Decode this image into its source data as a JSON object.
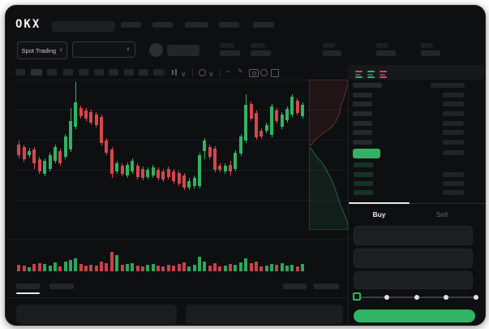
{
  "brand": "OKX",
  "header": {
    "market_selector_label": "Spot Trading"
  },
  "trade_panel": {
    "buy_tab_label": "Buy",
    "sell_tab_label": "Sell",
    "order_book": {
      "ask_rows": 7,
      "bid_rows": 4,
      "highlighted_row": "last-price-green"
    }
  },
  "colors": {
    "green": "#2eb464",
    "red": "#d8464e",
    "buy_button": "#2eb464",
    "tab_active_text": "#e8e9ea",
    "tab_inactive_text": "#63666b"
  },
  "chart_data": {
    "type": "candlestick",
    "title": "",
    "xlabel": "",
    "ylabel": "",
    "note": "skeleton trading UI; axes unlabeled, values in relative price units",
    "candles": [
      [
        105,
        110,
        88,
        92
      ],
      [
        102,
        105,
        84,
        87
      ],
      [
        92,
        101,
        89,
        97
      ],
      [
        99,
        102,
        75,
        82
      ],
      [
        87,
        90,
        69,
        72
      ],
      [
        69,
        88,
        66,
        85
      ],
      [
        75,
        95,
        72,
        92
      ],
      [
        85,
        105,
        82,
        102
      ],
      [
        97,
        100,
        79,
        82
      ],
      [
        90,
        118,
        87,
        115
      ],
      [
        99,
        150,
        96,
        134
      ],
      [
        127,
        182,
        124,
        157
      ],
      [
        150,
        153,
        137,
        140
      ],
      [
        147,
        150,
        134,
        137
      ],
      [
        145,
        148,
        129,
        132
      ],
      [
        142,
        145,
        126,
        129
      ],
      [
        139,
        142,
        104,
        107
      ],
      [
        110,
        113,
        92,
        95
      ],
      [
        99,
        102,
        64,
        69
      ],
      [
        72,
        85,
        69,
        82
      ],
      [
        79,
        82,
        66,
        69
      ],
      [
        67,
        83,
        64,
        80
      ],
      [
        72,
        88,
        69,
        85
      ],
      [
        79,
        82,
        62,
        65
      ],
      [
        75,
        78,
        61,
        64
      ],
      [
        65,
        77,
        62,
        74
      ],
      [
        67,
        80,
        64,
        77
      ],
      [
        74,
        77,
        61,
        64
      ],
      [
        72,
        75,
        59,
        62
      ],
      [
        75,
        78,
        62,
        65
      ],
      [
        72,
        75,
        57,
        60
      ],
      [
        70,
        73,
        54,
        57
      ],
      [
        67,
        70,
        49,
        52
      ],
      [
        52,
        64,
        49,
        60
      ],
      [
        54,
        67,
        51,
        64
      ],
      [
        54,
        95,
        51,
        92
      ],
      [
        97,
        113,
        87,
        110
      ],
      [
        102,
        105,
        87,
        90
      ],
      [
        100,
        103,
        71,
        74
      ],
      [
        79,
        82,
        71,
        74
      ],
      [
        72,
        82,
        69,
        79
      ],
      [
        80,
        85,
        67,
        72
      ],
      [
        75,
        98,
        72,
        95
      ],
      [
        94,
        118,
        91,
        115
      ],
      [
        110,
        167,
        107,
        154
      ],
      [
        155,
        158,
        134,
        137
      ],
      [
        144,
        147,
        111,
        114
      ],
      [
        122,
        125,
        112,
        115
      ],
      [
        122,
        132,
        119,
        129
      ],
      [
        117,
        155,
        114,
        152
      ],
      [
        147,
        150,
        131,
        134
      ],
      [
        127,
        145,
        124,
        142
      ],
      [
        135,
        152,
        132,
        149
      ],
      [
        142,
        167,
        139,
        164
      ],
      [
        159,
        162,
        141,
        144
      ],
      [
        140,
        157,
        137,
        154
      ]
    ],
    "volume": [
      8,
      7,
      5,
      9,
      10,
      9,
      7,
      11,
      6,
      12,
      14,
      16,
      9,
      7,
      8,
      7,
      12,
      10,
      24,
      20,
      8,
      9,
      10,
      7,
      6,
      8,
      9,
      7,
      6,
      8,
      7,
      9,
      11,
      6,
      8,
      18,
      12,
      7,
      10,
      6,
      7,
      9,
      8,
      11,
      16,
      10,
      12,
      6,
      7,
      9,
      8,
      10,
      7,
      8,
      6,
      9
    ],
    "depth": {
      "asks": [
        [
          48,
          6
        ],
        [
          46,
          12
        ],
        [
          44,
          20
        ],
        [
          42,
          26
        ],
        [
          40,
          30
        ],
        [
          38,
          40
        ],
        [
          34,
          50
        ],
        [
          30,
          56
        ],
        [
          26,
          60
        ],
        [
          20,
          64
        ],
        [
          12,
          70
        ],
        [
          6,
          76
        ],
        [
          2,
          81
        ]
      ],
      "bids": [
        [
          2,
          84
        ],
        [
          6,
          90
        ],
        [
          10,
          96
        ],
        [
          14,
          100
        ],
        [
          18,
          105
        ],
        [
          22,
          112
        ],
        [
          26,
          120
        ],
        [
          30,
          128
        ],
        [
          34,
          140
        ],
        [
          38,
          152
        ],
        [
          42,
          162
        ],
        [
          46,
          172
        ],
        [
          48,
          178
        ],
        [
          48,
          185
        ]
      ]
    }
  }
}
